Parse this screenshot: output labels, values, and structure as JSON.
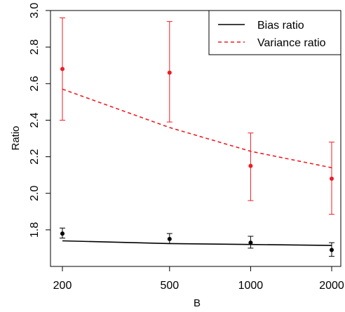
{
  "chart_data": {
    "type": "line",
    "title": "",
    "xlabel": "B",
    "ylabel": "Ratio",
    "x_scale": "log",
    "x": [
      200,
      500,
      1000,
      2000
    ],
    "x_tick_labels": [
      "200",
      "500",
      "1000",
      "2000"
    ],
    "xlim": [
      200,
      2000
    ],
    "ylim": [
      1.6,
      3.0
    ],
    "y_ticks": [
      1.8,
      2.0,
      2.2,
      2.4,
      2.6,
      2.8,
      3.0
    ],
    "y_tick_labels": [
      "1.8",
      "2.0",
      "2.2",
      "2.4",
      "2.6",
      "2.8",
      "3.0"
    ],
    "grid": false,
    "legend_position": "top-right",
    "series": [
      {
        "name": "Bias ratio",
        "color": "#000000",
        "line_style": "solid",
        "curve": [
          1.74,
          1.725,
          1.72,
          1.715
        ],
        "points": [
          1.78,
          1.75,
          1.73,
          1.69
        ],
        "error_low": [
          1.755,
          1.725,
          1.7,
          1.655
        ],
        "error_high": [
          1.81,
          1.78,
          1.765,
          1.73
        ]
      },
      {
        "name": "Variance ratio",
        "color": "#ee1c24",
        "line_style": "dashed",
        "curve": [
          2.57,
          2.36,
          2.23,
          2.14
        ],
        "points": [
          2.68,
          2.66,
          2.15,
          2.08
        ],
        "error_low": [
          2.4,
          2.39,
          1.96,
          1.885
        ],
        "error_high": [
          2.96,
          2.94,
          2.33,
          2.28
        ]
      }
    ]
  }
}
